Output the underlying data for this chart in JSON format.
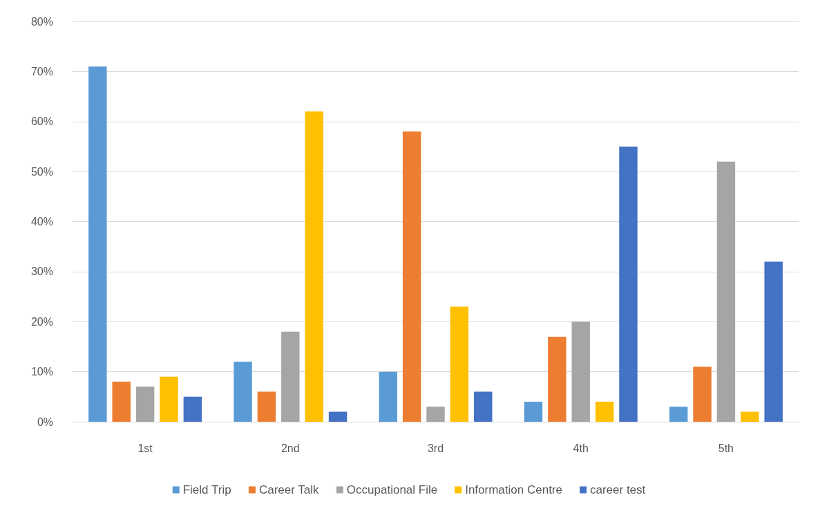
{
  "chart_data": {
    "type": "bar",
    "categories": [
      "1st",
      "2nd",
      "3rd",
      "4th",
      "5th"
    ],
    "series": [
      {
        "name": "Field Trip",
        "color": "#5b9bd5",
        "values": [
          71,
          12,
          10,
          4,
          3
        ]
      },
      {
        "name": "Career Talk",
        "color": "#ed7d31",
        "values": [
          8,
          6,
          58,
          17,
          11
        ]
      },
      {
        "name": "Occupational File",
        "color": "#a5a5a5",
        "values": [
          7,
          18,
          3,
          20,
          52
        ]
      },
      {
        "name": "Information Centre",
        "color": "#ffc000",
        "values": [
          9,
          62,
          23,
          4,
          2
        ]
      },
      {
        "name": "career test",
        "color": "#4472c4",
        "values": [
          5,
          2,
          6,
          55,
          32
        ]
      }
    ],
    "ylim": [
      0,
      80
    ],
    "yticks": [
      {
        "value": 0,
        "label": "0%"
      },
      {
        "value": 10,
        "label": "10%"
      },
      {
        "value": 20,
        "label": "20%"
      },
      {
        "value": 30,
        "label": "30%"
      },
      {
        "value": 40,
        "label": "40%"
      },
      {
        "value": 50,
        "label": "50%"
      },
      {
        "value": 60,
        "label": "60%"
      },
      {
        "value": 70,
        "label": "70%"
      },
      {
        "value": 80,
        "label": "80%"
      }
    ],
    "grid": "y",
    "legend": "bottom"
  }
}
